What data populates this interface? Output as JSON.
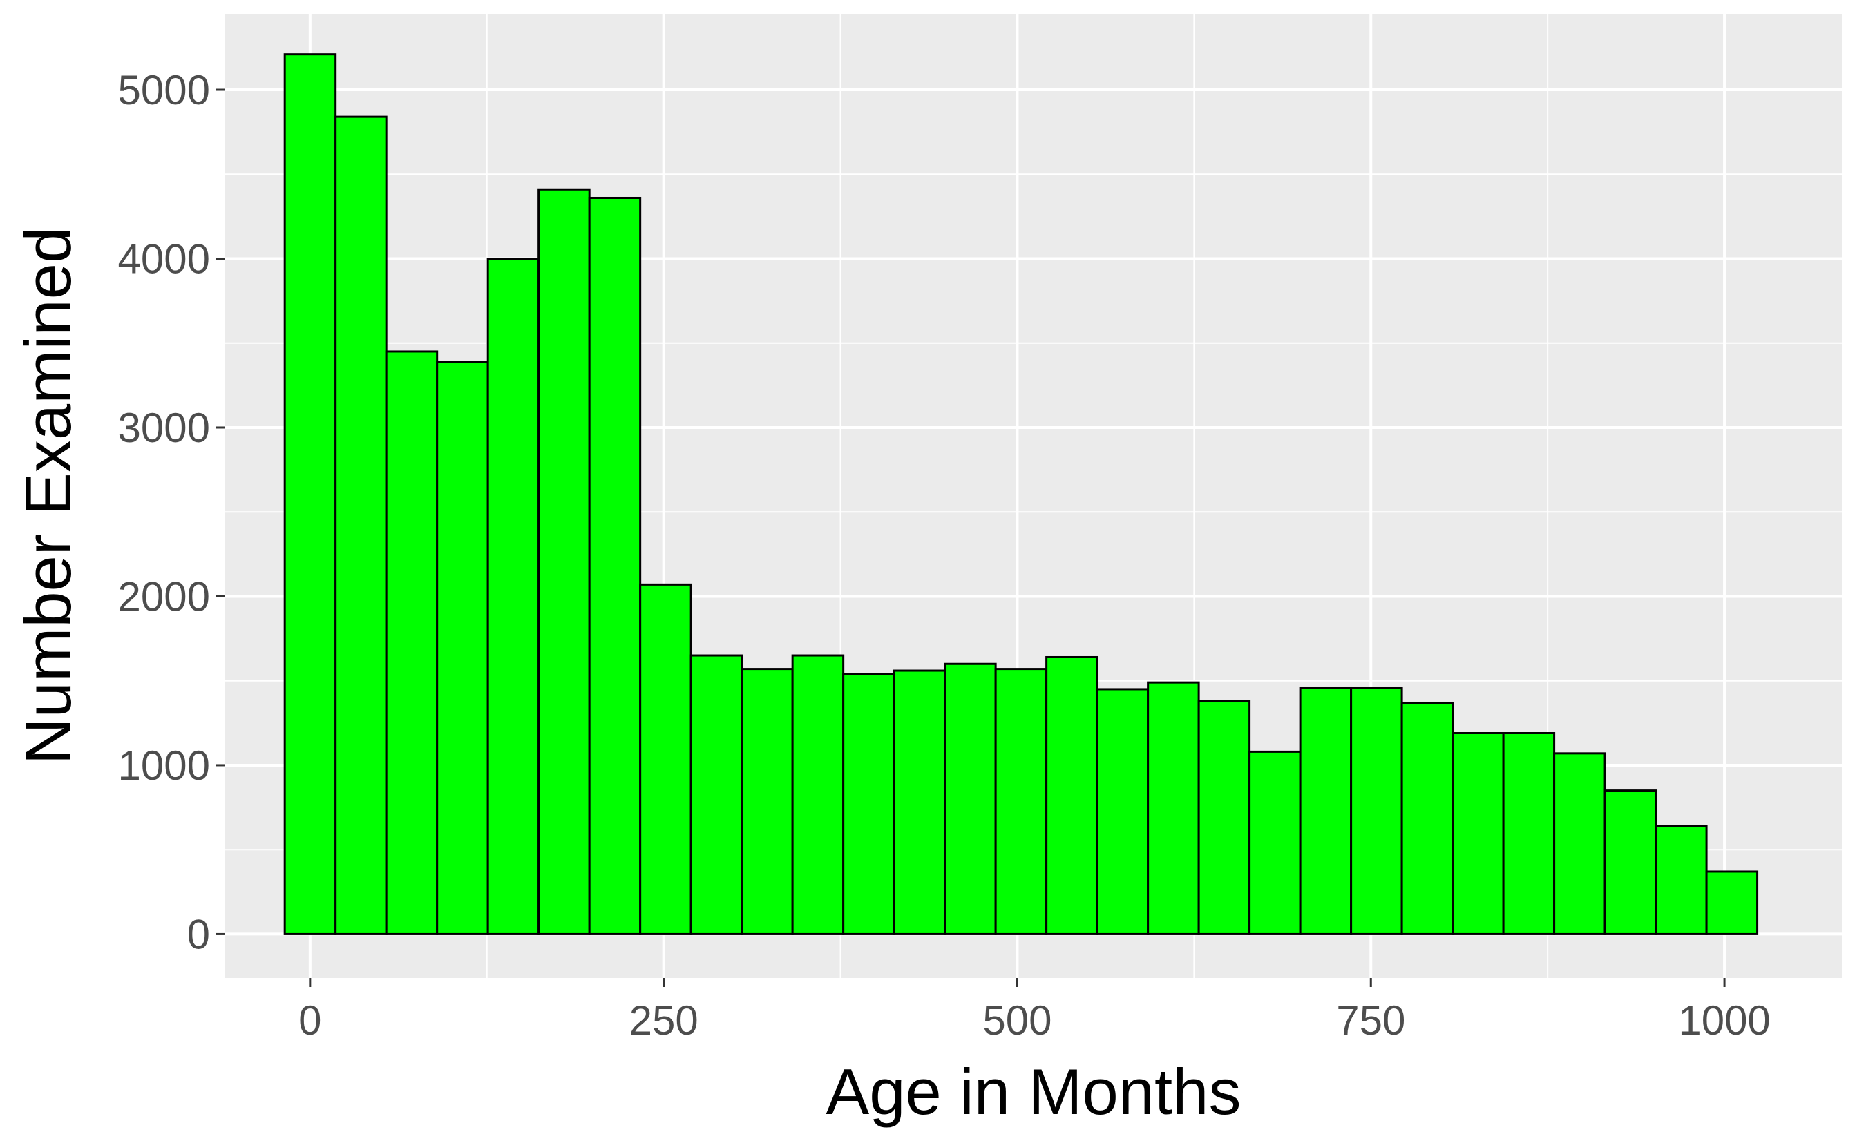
{
  "chart_data": {
    "type": "bar",
    "subtype": "histogram",
    "title": "",
    "xlabel": "Age in Months",
    "ylabel": "Number Examined",
    "xlim": [
      -60,
      1083
    ],
    "ylim": [
      -260,
      5450
    ],
    "x_ticks": [
      0,
      250,
      500,
      750,
      1000
    ],
    "x_tick_labels": [
      "0",
      "250",
      "500",
      "750",
      "1000"
    ],
    "y_ticks": [
      0,
      1000,
      2000,
      3000,
      4000,
      5000
    ],
    "y_tick_labels": [
      "0",
      "1000",
      "2000",
      "3000",
      "4000",
      "5000"
    ],
    "bin_width": 35.9,
    "bin_start": -17.9,
    "values": [
      5210,
      4840,
      3450,
      3390,
      4000,
      4410,
      4360,
      2070,
      1650,
      1570,
      1650,
      1540,
      1560,
      1600,
      1570,
      1640,
      1450,
      1490,
      1380,
      1080,
      1460,
      1460,
      1370,
      1190,
      1190,
      1070,
      850,
      640,
      370
    ],
    "bar_fill": "#00ff00",
    "bar_outline": "#000000",
    "panel_background": "#ebebeb",
    "grid_color": "#ffffff",
    "grid": true,
    "legend": "none"
  }
}
